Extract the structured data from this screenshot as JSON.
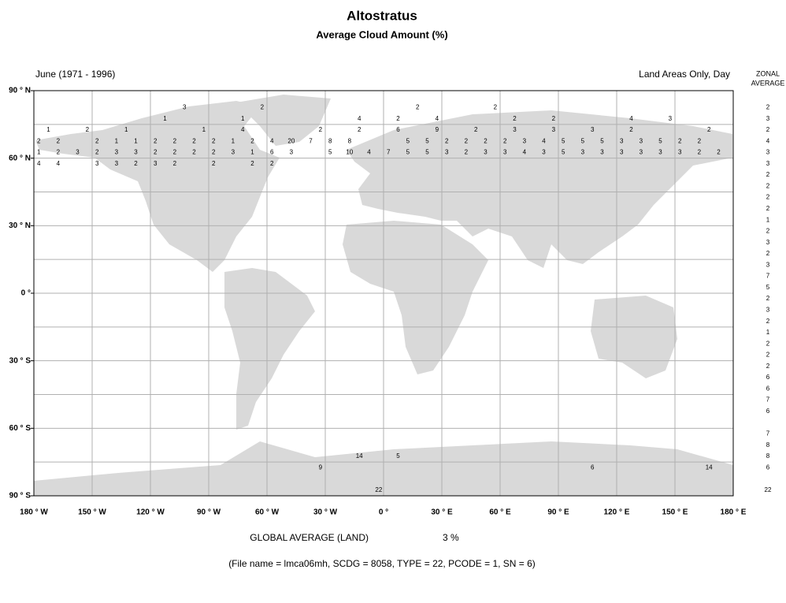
{
  "chart_data": {
    "type": "map_grid",
    "title": "Altostratus",
    "subtitle": "Average Cloud Amount (%)",
    "period": "June (1971 - 1996)",
    "coverage": "Land Areas Only, Day",
    "zonal_header": [
      "ZONAL",
      "AVERAGE"
    ],
    "xlim": [
      -180,
      180
    ],
    "ylim": [
      -90,
      90
    ],
    "xticks": [
      {
        "value": -180,
        "label": "180 ° W"
      },
      {
        "value": -150,
        "label": "150 ° W"
      },
      {
        "value": -120,
        "label": "120 ° W"
      },
      {
        "value": -90,
        "label": "90 ° W"
      },
      {
        "value": -60,
        "label": "60 ° W"
      },
      {
        "value": -30,
        "label": "30 ° W"
      },
      {
        "value": 0,
        "label": "0 °"
      },
      {
        "value": 30,
        "label": "30 ° E"
      },
      {
        "value": 60,
        "label": "60 ° E"
      },
      {
        "value": 90,
        "label": "90 ° E"
      },
      {
        "value": 120,
        "label": "120 ° E"
      },
      {
        "value": 150,
        "label": "150 ° E"
      },
      {
        "value": 180,
        "label": "180 ° E"
      }
    ],
    "yticks": [
      {
        "value": 90,
        "label": "90 ° N"
      },
      {
        "value": 60,
        "label": "60 ° N"
      },
      {
        "value": 30,
        "label": "30 ° N"
      },
      {
        "value": 0,
        "label": "0 °"
      },
      {
        "value": -30,
        "label": "30 ° S"
      },
      {
        "value": -60,
        "label": "60 ° S"
      },
      {
        "value": -90,
        "label": "90 ° S"
      }
    ],
    "ygrid": [
      75,
      60,
      45,
      30,
      15,
      0,
      -15,
      -30,
      -45,
      -60,
      -75
    ],
    "zonal_lat": [
      87.5,
      82.5,
      77.5,
      72.5,
      67.5,
      62.5,
      57.5,
      52.5,
      47.5,
      42.5,
      37.5,
      32.5,
      27.5,
      22.5,
      17.5,
      12.5,
      7.5,
      2.5,
      -2.5,
      -7.5,
      -12.5,
      -17.5,
      -22.5,
      -27.5,
      -32.5,
      -37.5,
      -42.5,
      -47.5,
      -52.5,
      -57.5,
      -62.5,
      -67.5,
      -72.5,
      -77.5,
      -82.5,
      -87.5
    ],
    "zonal_average": [
      null,
      2,
      3,
      2,
      4,
      3,
      3,
      2,
      2,
      2,
      2,
      1,
      2,
      3,
      2,
      3,
      7,
      5,
      2,
      3,
      2,
      1,
      2,
      2,
      2,
      6,
      6,
      7,
      6,
      null,
      7,
      8,
      8,
      6,
      null,
      22
    ],
    "cells": [
      {
        "lat": 82.5,
        "lon": [
          -102.5,
          -62.5,
          17.5,
          57.5
        ],
        "values": [
          3,
          2,
          2,
          2
        ]
      },
      {
        "lat": 77.5,
        "lon": [
          -112.5,
          -72.5,
          -12.5,
          7.5,
          27.5,
          67.5,
          87.5,
          127.5,
          147.5
        ],
        "values": [
          1,
          1,
          4,
          2,
          4,
          2,
          2,
          4,
          3
        ]
      },
      {
        "lat": 72.5,
        "lon": [
          -172.5,
          -152.5,
          -132.5,
          -92.5,
          -72.5,
          -32.5,
          -12.5,
          7.5,
          27.5,
          47.5,
          67.5,
          87.5,
          107.5,
          127.5,
          167.5
        ],
        "values": [
          1,
          2,
          1,
          1,
          4,
          2,
          2,
          6,
          9,
          2,
          3,
          3,
          3,
          2,
          2
        ]
      },
      {
        "lat": 67.5,
        "lon": [
          -177.5,
          -167.5,
          -147.5,
          -137.5,
          -127.5,
          -117.5,
          -107.5,
          -97.5,
          -87.5,
          -77.5,
          -67.5,
          -57.5,
          -47.5,
          -37.5,
          -27.5,
          -17.5,
          12.5,
          22.5,
          32.5,
          42.5,
          52.5,
          62.5,
          72.5,
          82.5,
          92.5,
          102.5,
          112.5,
          122.5,
          132.5,
          142.5,
          152.5,
          162.5
        ],
        "values": [
          2,
          2,
          2,
          1,
          1,
          2,
          2,
          2,
          2,
          1,
          2,
          4,
          20,
          7,
          8,
          8,
          5,
          5,
          2,
          2,
          2,
          2,
          3,
          4,
          5,
          5,
          5,
          3,
          3,
          5,
          2,
          2
        ]
      },
      {
        "lat": 62.5,
        "lon": [
          -177.5,
          -167.5,
          -157.5,
          -147.5,
          -137.5,
          -127.5,
          -117.5,
          -107.5,
          -97.5,
          -87.5,
          -77.5,
          -67.5,
          -57.5,
          -47.5,
          -27.5,
          -17.5,
          -7.5,
          2.5,
          12.5,
          22.5,
          32.5,
          42.5,
          52.5,
          62.5,
          72.5,
          82.5,
          92.5,
          102.5,
          112.5,
          122.5,
          132.5,
          142.5,
          152.5,
          162.5,
          172.5
        ],
        "values": [
          1,
          2,
          3,
          2,
          3,
          3,
          2,
          2,
          2,
          2,
          3,
          1,
          6,
          3,
          5,
          10,
          4,
          7,
          5,
          5,
          3,
          2,
          3,
          3,
          4,
          3,
          5,
          3,
          3,
          3,
          3,
          3,
          3,
          2,
          2
        ]
      },
      {
        "lat": 57.5,
        "lon": [
          -177.5,
          -167.5,
          -147.5,
          -137.5,
          -127.5,
          -117.5,
          -107.5,
          -87.5,
          -67.5,
          -57.5
        ],
        "values": [
          4,
          4,
          3,
          3,
          2,
          3,
          2,
          2,
          2,
          2
        ]
      },
      {
        "lat": -72.5,
        "lon": [
          -12.5,
          7.5
        ],
        "values": [
          14,
          5
        ]
      },
      {
        "lat": -77.5,
        "lon": [
          -32.5,
          107.5,
          167.5
        ],
        "values": [
          9,
          6,
          14
        ]
      },
      {
        "lat": -87.5,
        "lon": [
          -2.5
        ],
        "values": [
          22
        ]
      }
    ],
    "land_color": "#d9d9d9",
    "grid_color": "#b0b0b0",
    "global_label": "GLOBAL AVERAGE (LAND)",
    "global_value": 3,
    "global_value_label": "3 %",
    "footnote": "(File name = lmca06mh, SCDG = 8058, TYPE = 22, PCODE = 1, SN = 6)"
  }
}
